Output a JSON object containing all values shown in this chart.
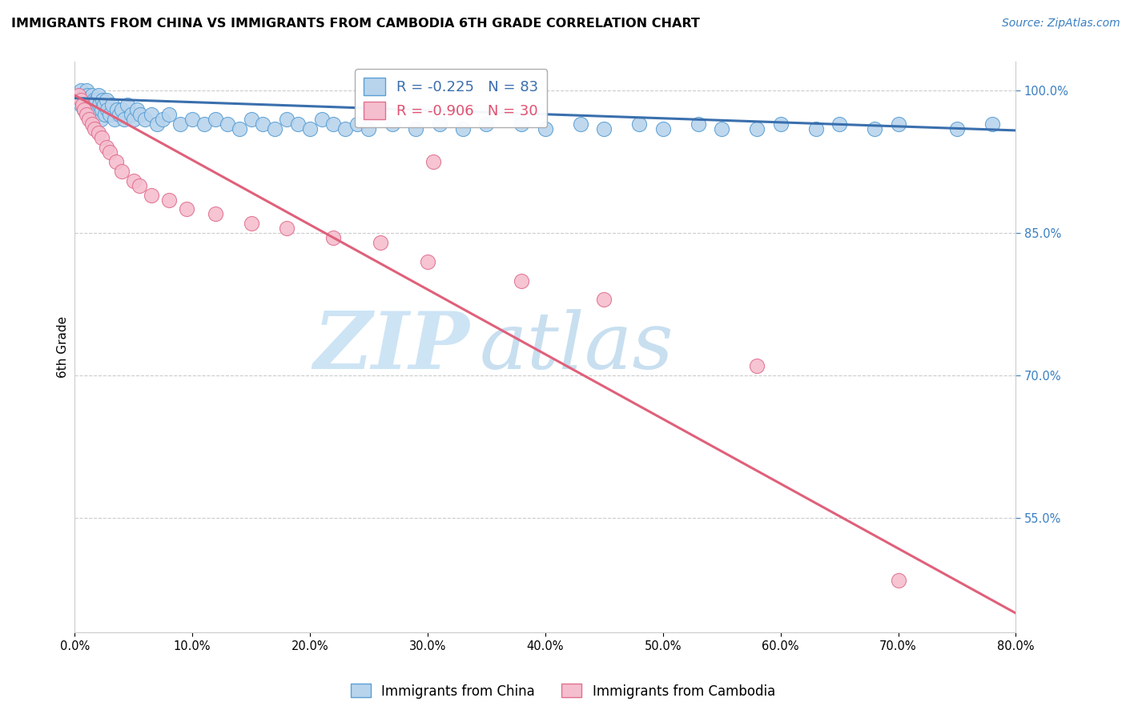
{
  "title": "IMMIGRANTS FROM CHINA VS IMMIGRANTS FROM CAMBODIA 6TH GRADE CORRELATION CHART",
  "source_text": "Source: ZipAtlas.com",
  "ylabel": "6th Grade",
  "xlim": [
    0.0,
    80.0
  ],
  "ylim": [
    43.0,
    103.0
  ],
  "x_ticks": [
    0.0,
    10.0,
    20.0,
    30.0,
    40.0,
    50.0,
    60.0,
    70.0,
    80.0
  ],
  "y_ticks_right": [
    100.0,
    85.0,
    70.0,
    55.0
  ],
  "china_color": "#b8d4ed",
  "china_edge_color": "#5a9fd4",
  "cambodia_color": "#f5bece",
  "cambodia_edge_color": "#e07090",
  "china_line_color": "#3a6fad",
  "cambodia_line_color": "#e0607a",
  "china_R": -0.225,
  "china_N": 83,
  "cambodia_R": -0.906,
  "cambodia_N": 30,
  "legend_label_china": "Immigrants from China",
  "legend_label_cambodia": "Immigrants from Cambodia",
  "watermark_zip": "ZIP",
  "watermark_atlas": "atlas",
  "watermark_color": "#cde4f5",
  "grid_color": "#cccccc",
  "background_color": "#ffffff",
  "china_line_x0": 0.0,
  "china_line_x1": 80.0,
  "china_line_y0": 99.2,
  "china_line_y1": 95.8,
  "cambodia_line_x0": 0.0,
  "cambodia_line_x1": 80.0,
  "cambodia_line_y0": 99.5,
  "cambodia_line_y1": 45.0,
  "china_scatter_x": [
    0.3,
    0.5,
    0.5,
    0.7,
    0.8,
    0.9,
    1.0,
    1.0,
    1.1,
    1.2,
    1.3,
    1.4,
    1.5,
    1.5,
    1.6,
    1.7,
    1.8,
    1.8,
    1.9,
    2.0,
    2.1,
    2.2,
    2.3,
    2.4,
    2.5,
    2.6,
    2.7,
    2.8,
    3.0,
    3.2,
    3.4,
    3.6,
    3.8,
    4.0,
    4.2,
    4.5,
    4.8,
    5.0,
    5.3,
    5.6,
    6.0,
    6.5,
    7.0,
    7.5,
    8.0,
    9.0,
    10.0,
    11.0,
    12.0,
    13.0,
    14.0,
    15.0,
    16.0,
    17.0,
    18.0,
    19.0,
    20.0,
    21.0,
    22.0,
    23.0,
    24.0,
    25.0,
    27.0,
    29.0,
    31.0,
    33.0,
    35.0,
    38.0,
    40.0,
    43.0,
    45.0,
    48.0,
    50.0,
    53.0,
    55.0,
    58.0,
    60.0,
    63.0,
    65.0,
    68.0,
    70.0,
    75.0,
    78.0
  ],
  "china_scatter_y": [
    99.5,
    100.0,
    98.5,
    99.0,
    98.0,
    99.5,
    98.0,
    100.0,
    99.5,
    98.5,
    99.0,
    98.0,
    99.5,
    98.0,
    99.0,
    98.5,
    97.5,
    99.0,
    98.0,
    99.5,
    98.5,
    97.0,
    98.0,
    99.0,
    98.5,
    97.5,
    99.0,
    98.0,
    97.5,
    98.5,
    97.0,
    98.0,
    97.5,
    98.0,
    97.0,
    98.5,
    97.5,
    97.0,
    98.0,
    97.5,
    97.0,
    97.5,
    96.5,
    97.0,
    97.5,
    96.5,
    97.0,
    96.5,
    97.0,
    96.5,
    96.0,
    97.0,
    96.5,
    96.0,
    97.0,
    96.5,
    96.0,
    97.0,
    96.5,
    96.0,
    96.5,
    96.0,
    96.5,
    96.0,
    96.5,
    96.0,
    96.5,
    96.5,
    96.0,
    96.5,
    96.0,
    96.5,
    96.0,
    96.5,
    96.0,
    96.0,
    96.5,
    96.0,
    96.5,
    96.0,
    96.5,
    96.0,
    96.5
  ],
  "cambodia_scatter_x": [
    0.3,
    0.5,
    0.7,
    0.8,
    1.0,
    1.2,
    1.5,
    1.7,
    2.0,
    2.3,
    2.7,
    3.0,
    3.5,
    4.0,
    5.0,
    5.5,
    6.5,
    8.0,
    9.5,
    12.0,
    15.0,
    18.0,
    22.0,
    26.0,
    30.0,
    30.5,
    38.0,
    45.0,
    58.0,
    70.0
  ],
  "cambodia_scatter_y": [
    99.5,
    99.0,
    98.5,
    98.0,
    97.5,
    97.0,
    96.5,
    96.0,
    95.5,
    95.0,
    94.0,
    93.5,
    92.5,
    91.5,
    90.5,
    90.0,
    89.0,
    88.5,
    87.5,
    87.0,
    86.0,
    85.5,
    84.5,
    84.0,
    82.0,
    92.5,
    80.0,
    78.0,
    71.0,
    48.5
  ]
}
